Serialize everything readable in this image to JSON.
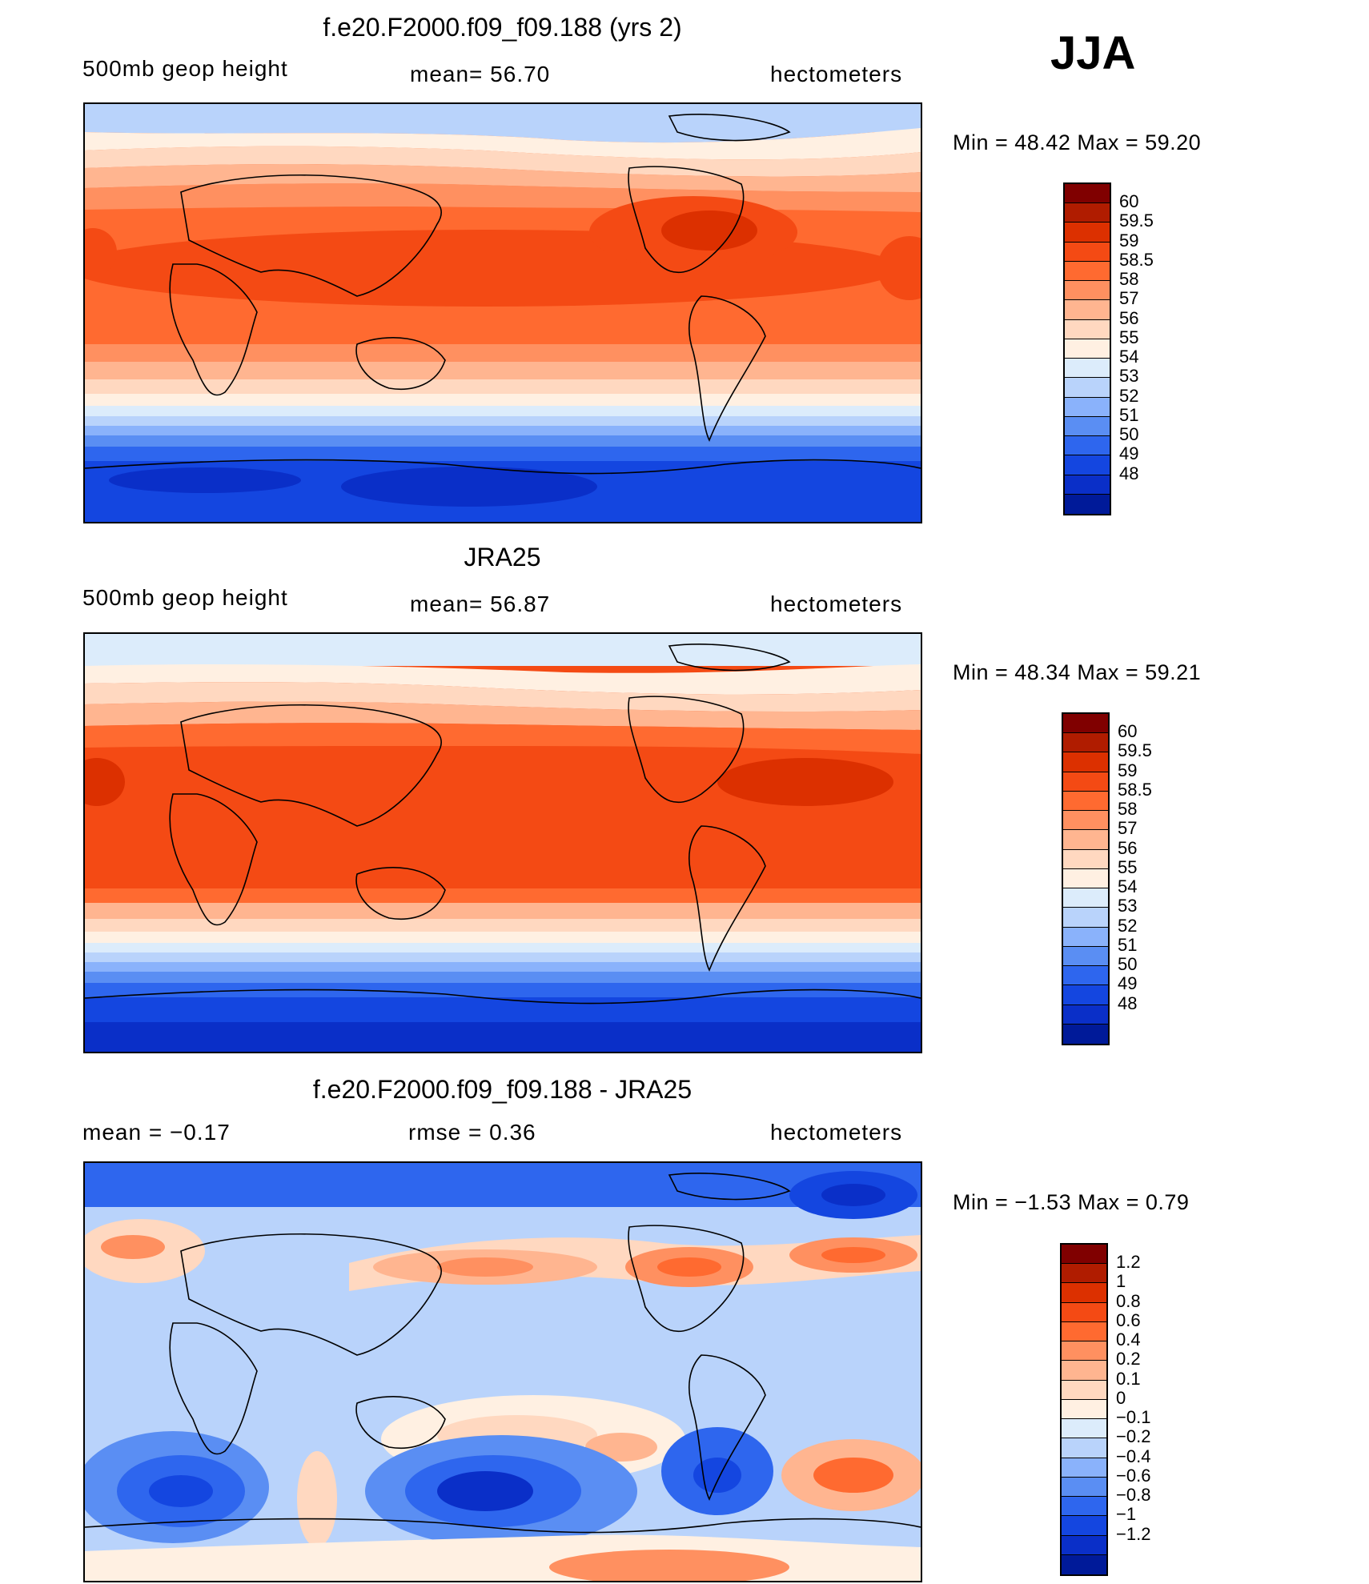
{
  "season": "JJA",
  "panels": [
    {
      "id": "model",
      "title": "f.e20.F2000.f09_f09.188 (yrs 2)",
      "left_label": "500mb  geop  height",
      "center_label": "mean=   56.70",
      "right_label": "hectometers",
      "minmax": "Min  =    48.42  Max  =    59.20",
      "colorbar": {
        "labels": [
          "60",
          "59.5",
          "59",
          "58.5",
          "58",
          "57",
          "56",
          "55",
          "54",
          "53",
          "52",
          "51",
          "50",
          "49",
          "48"
        ],
        "colors": [
          "#800000",
          "#b01c00",
          "#dc3000",
          "#f44a14",
          "#ff6a30",
          "#ff9060",
          "#ffb590",
          "#ffd8c0",
          "#fff0e2",
          "#dcecfb",
          "#b9d3fb",
          "#8ab2fb",
          "#5a8ef3",
          "#2e66ee",
          "#1446e0",
          "#0a2fc8",
          "#001a99"
        ]
      }
    },
    {
      "id": "obs",
      "title": "JRA25",
      "left_label": "500mb  geop  height",
      "center_label": "mean=   56.87",
      "right_label": "hectometers",
      "minmax": "Min  =    48.34  Max  =    59.21",
      "colorbar": {
        "labels": [
          "60",
          "59.5",
          "59",
          "58.5",
          "58",
          "57",
          "56",
          "55",
          "54",
          "53",
          "52",
          "51",
          "50",
          "49",
          "48"
        ],
        "colors": [
          "#800000",
          "#b01c00",
          "#dc3000",
          "#f44a14",
          "#ff6a30",
          "#ff9060",
          "#ffb590",
          "#ffd8c0",
          "#fff0e2",
          "#dcecfb",
          "#b9d3fb",
          "#8ab2fb",
          "#5a8ef3",
          "#2e66ee",
          "#1446e0",
          "#0a2fc8",
          "#001a99"
        ]
      }
    },
    {
      "id": "diff",
      "title": "f.e20.F2000.f09_f09.188 - JRA25",
      "left_label": "mean  =    −0.17",
      "center_label": "rmse  =     0.36",
      "right_label": "hectometers",
      "minmax": "Min  =    −1.53  Max  =     0.79",
      "colorbar": {
        "labels": [
          "1.2",
          "1",
          "0.8",
          "0.6",
          "0.4",
          "0.2",
          "0.1",
          "0",
          "−0.1",
          "−0.2",
          "−0.4",
          "−0.6",
          "−0.8",
          "−1",
          "−1.2"
        ],
        "colors": [
          "#800000",
          "#b01c00",
          "#dc3000",
          "#f44a14",
          "#ff6a30",
          "#ff9060",
          "#ffb590",
          "#ffd8c0",
          "#fff0e2",
          "#dcecfb",
          "#b9d3fb",
          "#8ab2fb",
          "#5a8ef3",
          "#2e66ee",
          "#1446e0",
          "#0a2fc8",
          "#001a99"
        ]
      }
    }
  ]
}
